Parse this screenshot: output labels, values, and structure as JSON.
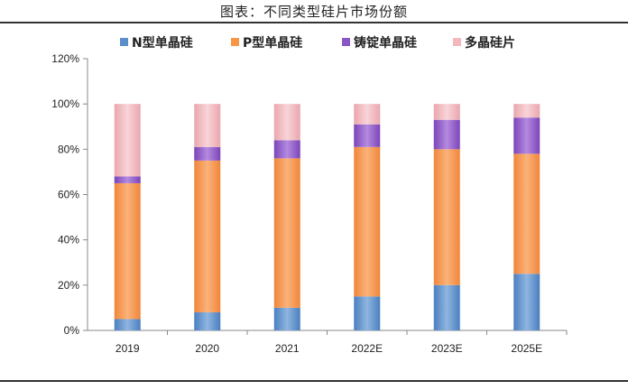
{
  "caption": "图表：不同类型硅片市场份额",
  "chart_data": {
    "type": "bar",
    "stacked": true,
    "title": "",
    "xlabel": "",
    "ylabel": "",
    "categories": [
      "2019",
      "2020",
      "2021",
      "2022E",
      "2023E",
      "2025E"
    ],
    "series": [
      {
        "name": "N型单晶硅",
        "color": "#5b8fc9",
        "values": [
          5,
          8,
          10,
          15,
          20,
          25
        ]
      },
      {
        "name": "P型单晶硅",
        "color": "#f79646",
        "values": [
          60,
          67,
          66,
          66,
          60,
          53
        ]
      },
      {
        "name": "铸锭单晶硅",
        "color": "#8a55c4",
        "values": [
          3,
          6,
          8,
          10,
          13,
          16
        ]
      },
      {
        "name": "多晶硅片",
        "color": "#f2b8be",
        "values": [
          32,
          19,
          16,
          9,
          7,
          6
        ]
      }
    ],
    "ylim": [
      0,
      120
    ],
    "yticks": [
      "0%",
      "20%",
      "40%",
      "60%",
      "80%",
      "100%",
      "120%"
    ],
    "grid": false,
    "legend_position": "top"
  }
}
